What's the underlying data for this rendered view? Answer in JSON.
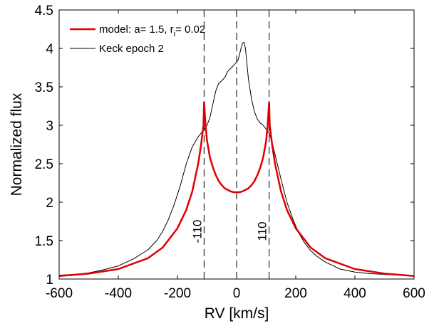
{
  "chart_data": {
    "type": "line",
    "xlabel": "RV [km/s]",
    "ylabel": "Normalized flux",
    "xlim": [
      -600,
      600
    ],
    "ylim": [
      1,
      4.5
    ],
    "xticks": [
      -600,
      -400,
      -200,
      0,
      200,
      400,
      600
    ],
    "yticks": [
      1,
      1.5,
      2,
      2.5,
      3,
      3.5,
      4,
      4.5
    ],
    "xtick_labels": [
      "-600",
      "-400",
      "-200",
      "0",
      "200",
      "400",
      "600"
    ],
    "ytick_labels": [
      "1",
      "1.5",
      "2",
      "2.5",
      "3",
      "3.5",
      "4",
      "4.5"
    ],
    "grid": false,
    "legend_position": "top-left",
    "series": [
      {
        "name": "model: a= 1.5, r",
        "name_subscript": "i",
        "name_suffix": "= 0.02",
        "color": "#e00000",
        "x": [
          -600,
          -500,
          -400,
          -300,
          -250,
          -200,
          -170,
          -150,
          -130,
          -120,
          -112,
          -110,
          -105,
          -100,
          -90,
          -80,
          -70,
          -60,
          -50,
          -40,
          -30,
          -20,
          -10,
          0,
          10,
          20,
          30,
          40,
          50,
          60,
          70,
          80,
          90,
          100,
          105,
          110,
          112,
          120,
          130,
          150,
          170,
          200,
          250,
          300,
          400,
          500,
          600
        ],
        "y": [
          1.04,
          1.07,
          1.13,
          1.27,
          1.41,
          1.66,
          1.9,
          2.14,
          2.5,
          2.75,
          3.0,
          3.3,
          3.0,
          2.8,
          2.58,
          2.45,
          2.35,
          2.27,
          2.22,
          2.18,
          2.16,
          2.14,
          2.13,
          2.13,
          2.13,
          2.14,
          2.16,
          2.18,
          2.22,
          2.27,
          2.35,
          2.45,
          2.58,
          2.8,
          3.0,
          3.3,
          3.0,
          2.75,
          2.5,
          2.14,
          1.9,
          1.66,
          1.41,
          1.27,
          1.13,
          1.07,
          1.04
        ]
      },
      {
        "name": "Keck epoch 2",
        "color": "#000000",
        "x": [
          -600,
          -550,
          -500,
          -450,
          -400,
          -350,
          -300,
          -270,
          -250,
          -230,
          -210,
          -190,
          -170,
          -150,
          -130,
          -115,
          -100,
          -90,
          -80,
          -70,
          -60,
          -50,
          -40,
          -30,
          -20,
          -10,
          0,
          5,
          10,
          15,
          20,
          25,
          30,
          35,
          40,
          50,
          60,
          70,
          80,
          90,
          100,
          110,
          120,
          130,
          150,
          170,
          190,
          210,
          230,
          250,
          270,
          300,
          350,
          400,
          450,
          500,
          550,
          600
        ],
        "y": [
          1.05,
          1.06,
          1.08,
          1.12,
          1.17,
          1.26,
          1.38,
          1.5,
          1.62,
          1.78,
          1.98,
          2.22,
          2.5,
          2.72,
          2.85,
          2.92,
          3.0,
          3.1,
          3.28,
          3.45,
          3.55,
          3.58,
          3.62,
          3.7,
          3.74,
          3.78,
          3.82,
          3.85,
          3.92,
          4.0,
          4.07,
          4.08,
          4.0,
          3.8,
          3.6,
          3.35,
          3.18,
          3.08,
          3.03,
          3.0,
          2.95,
          2.9,
          2.78,
          2.62,
          2.3,
          2.0,
          1.78,
          1.6,
          1.47,
          1.37,
          1.3,
          1.22,
          1.13,
          1.09,
          1.07,
          1.06,
          1.05,
          1.04
        ]
      }
    ],
    "vlines": [
      {
        "x": -110,
        "label": "-110"
      },
      {
        "x": 0,
        "label": ""
      },
      {
        "x": 110,
        "label": "110"
      }
    ]
  }
}
